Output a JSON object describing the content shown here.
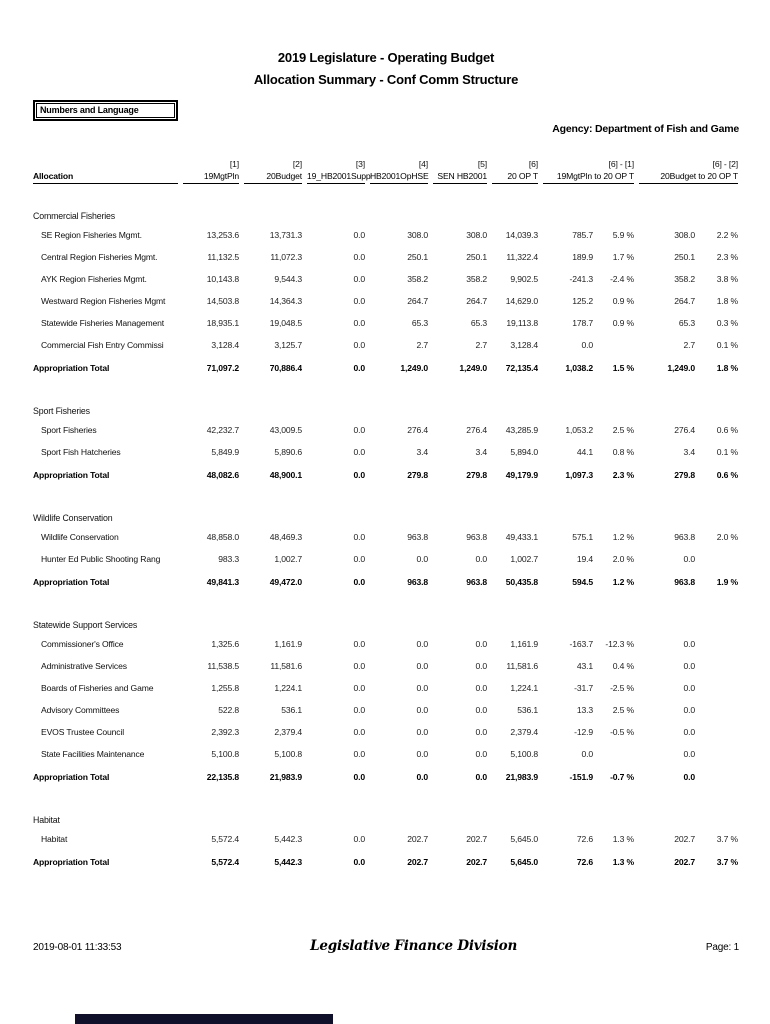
{
  "header": {
    "title_line1": "2019 Legislature - Operating Budget",
    "title_line2": "Allocation Summary - Conf Comm Structure",
    "box_label": "Numbers and Language",
    "agency": "Agency: Department of Fish and Game"
  },
  "table": {
    "col_refs": [
      "[1]",
      "[2]",
      "[3]",
      "[4]",
      "[5]",
      "[6]",
      "[6] - [1]",
      "[6] - [2]"
    ],
    "col_headers": [
      "Allocation",
      "19MgtPln",
      "20Budget",
      "19_HB2001Supp",
      "HB2001OpHSE",
      "SEN HB2001",
      "20 OP T",
      "19MgtPln to 20 OP T",
      "20Budget to 20 OP T"
    ],
    "sections": [
      {
        "name": "Commercial Fisheries",
        "rows": [
          {
            "label": "SE Region Fisheries Mgmt.",
            "values": [
              "13,253.6",
              "13,731.3",
              "0.0",
              "308.0",
              "308.0",
              "14,039.3",
              "785.7",
              "5.9 %",
              "308.0",
              "2.2 %"
            ]
          },
          {
            "label": "Central Region Fisheries Mgmt.",
            "values": [
              "11,132.5",
              "11,072.3",
              "0.0",
              "250.1",
              "250.1",
              "11,322.4",
              "189.9",
              "1.7 %",
              "250.1",
              "2.3 %"
            ]
          },
          {
            "label": "AYK Region Fisheries Mgmt.",
            "values": [
              "10,143.8",
              "9,544.3",
              "0.0",
              "358.2",
              "358.2",
              "9,902.5",
              "-241.3",
              "-2.4 %",
              "358.2",
              "3.8 %"
            ]
          },
          {
            "label": "Westward Region Fisheries Mgmt",
            "values": [
              "14,503.8",
              "14,364.3",
              "0.0",
              "264.7",
              "264.7",
              "14,629.0",
              "125.2",
              "0.9 %",
              "264.7",
              "1.8 %"
            ]
          },
          {
            "label": "Statewide Fisheries Management",
            "values": [
              "18,935.1",
              "19,048.5",
              "0.0",
              "65.3",
              "65.3",
              "19,113.8",
              "178.7",
              "0.9 %",
              "65.3",
              "0.3 %"
            ]
          },
          {
            "label": "Commercial Fish Entry Commissi",
            "values": [
              "3,128.4",
              "3,125.7",
              "0.0",
              "2.7",
              "2.7",
              "3,128.4",
              "0.0",
              "",
              "2.7",
              "0.1 %"
            ]
          }
        ],
        "total": {
          "label": "Appropriation Total",
          "values": [
            "71,097.2",
            "70,886.4",
            "0.0",
            "1,249.0",
            "1,249.0",
            "72,135.4",
            "1,038.2",
            "1.5 %",
            "1,249.0",
            "1.8 %"
          ]
        }
      },
      {
        "name": "Sport Fisheries",
        "rows": [
          {
            "label": "Sport Fisheries",
            "values": [
              "42,232.7",
              "43,009.5",
              "0.0",
              "276.4",
              "276.4",
              "43,285.9",
              "1,053.2",
              "2.5 %",
              "276.4",
              "0.6 %"
            ]
          },
          {
            "label": "Sport Fish Hatcheries",
            "values": [
              "5,849.9",
              "5,890.6",
              "0.0",
              "3.4",
              "3.4",
              "5,894.0",
              "44.1",
              "0.8 %",
              "3.4",
              "0.1 %"
            ]
          }
        ],
        "total": {
          "label": "Appropriation Total",
          "values": [
            "48,082.6",
            "48,900.1",
            "0.0",
            "279.8",
            "279.8",
            "49,179.9",
            "1,097.3",
            "2.3 %",
            "279.8",
            "0.6 %"
          ]
        }
      },
      {
        "name": "Wildlife Conservation",
        "rows": [
          {
            "label": "Wildlife Conservation",
            "values": [
              "48,858.0",
              "48,469.3",
              "0.0",
              "963.8",
              "963.8",
              "49,433.1",
              "575.1",
              "1.2 %",
              "963.8",
              "2.0 %"
            ]
          },
          {
            "label": "Hunter Ed Public Shooting Rang",
            "values": [
              "983.3",
              "1,002.7",
              "0.0",
              "0.0",
              "0.0",
              "1,002.7",
              "19.4",
              "2.0 %",
              "0.0",
              ""
            ]
          }
        ],
        "total": {
          "label": "Appropriation Total",
          "values": [
            "49,841.3",
            "49,472.0",
            "0.0",
            "963.8",
            "963.8",
            "50,435.8",
            "594.5",
            "1.2 %",
            "963.8",
            "1.9 %"
          ]
        }
      },
      {
        "name": "Statewide Support Services",
        "rows": [
          {
            "label": "Commissioner's Office",
            "values": [
              "1,325.6",
              "1,161.9",
              "0.0",
              "0.0",
              "0.0",
              "1,161.9",
              "-163.7",
              "-12.3 %",
              "0.0",
              ""
            ]
          },
          {
            "label": "Administrative Services",
            "values": [
              "11,538.5",
              "11,581.6",
              "0.0",
              "0.0",
              "0.0",
              "11,581.6",
              "43.1",
              "0.4 %",
              "0.0",
              ""
            ]
          },
          {
            "label": "Boards of Fisheries and Game",
            "values": [
              "1,255.8",
              "1,224.1",
              "0.0",
              "0.0",
              "0.0",
              "1,224.1",
              "-31.7",
              "-2.5 %",
              "0.0",
              ""
            ]
          },
          {
            "label": "Advisory Committees",
            "values": [
              "522.8",
              "536.1",
              "0.0",
              "0.0",
              "0.0",
              "536.1",
              "13.3",
              "2.5 %",
              "0.0",
              ""
            ]
          },
          {
            "label": "EVOS Trustee Council",
            "values": [
              "2,392.3",
              "2,379.4",
              "0.0",
              "0.0",
              "0.0",
              "2,379.4",
              "-12.9",
              "-0.5 %",
              "0.0",
              ""
            ]
          },
          {
            "label": "State Facilities Maintenance",
            "values": [
              "5,100.8",
              "5,100.8",
              "0.0",
              "0.0",
              "0.0",
              "5,100.8",
              "0.0",
              "",
              "0.0",
              ""
            ]
          }
        ],
        "total": {
          "label": "Appropriation Total",
          "values": [
            "22,135.8",
            "21,983.9",
            "0.0",
            "0.0",
            "0.0",
            "21,983.9",
            "-151.9",
            "-0.7 %",
            "0.0",
            ""
          ]
        }
      },
      {
        "name": "Habitat",
        "rows": [
          {
            "label": "Habitat",
            "values": [
              "5,572.4",
              "5,442.3",
              "0.0",
              "202.7",
              "202.7",
              "5,645.0",
              "72.6",
              "1.3 %",
              "202.7",
              "3.7 %"
            ]
          }
        ],
        "total": {
          "label": "Appropriation Total",
          "values": [
            "5,572.4",
            "5,442.3",
            "0.0",
            "202.7",
            "202.7",
            "5,645.0",
            "72.6",
            "1.3 %",
            "202.7",
            "3.7 %"
          ]
        }
      }
    ]
  },
  "footer": {
    "timestamp": "2019-08-01 11:33:53",
    "division": "Legislative Finance Division",
    "page": "Page: 1"
  },
  "colors": {
    "text": "#000000",
    "bottom_bar": "#10102a"
  }
}
